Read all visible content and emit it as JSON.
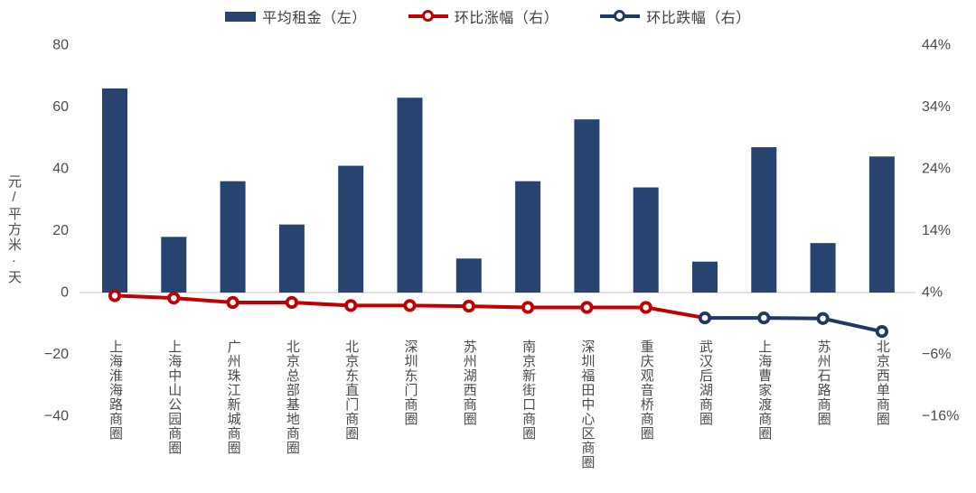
{
  "legend": [
    {
      "label": "平均租金（左）",
      "marker": "bar-swatch",
      "color": "#27436f"
    },
    {
      "label": "环比涨幅（右）",
      "marker": "line-ring",
      "color": "#c00000"
    },
    {
      "label": "环比跌幅（右）",
      "marker": "line-ring",
      "color": "#1f3864"
    }
  ],
  "chart_data": {
    "type": "bar+line",
    "legend_position": "top",
    "grid": "none",
    "zero_line_color": "#d9d9d9",
    "categories": [
      "上海淮海路商圈",
      "上海中山公园商圈",
      "广州珠江新城商圈",
      "北京总部基地商圈",
      "北京东直门商圈",
      "深圳东门商圈",
      "苏州湖西商圈",
      "南京新街口商圈",
      "深圳福田中心区商圈",
      "重庆观音桥商圈",
      "武汉后湖商圈",
      "上海曹家渡商圈",
      "苏州石路商圈",
      "北京西单商圈"
    ],
    "series": [
      {
        "name": "平均租金（左）",
        "type": "bar",
        "axis": "left",
        "color": "#27436f",
        "values": [
          66,
          18,
          36,
          22,
          41,
          63,
          11,
          36,
          56,
          34,
          10,
          47,
          16,
          44
        ]
      },
      {
        "name": "环比涨幅（右）",
        "type": "line",
        "axis": "right",
        "color": "#c00000",
        "marker": "open-circle",
        "bridge_to_next": true,
        "values": [
          3.5,
          3.1,
          2.4,
          2.4,
          1.9,
          1.9,
          1.8,
          1.6,
          1.6,
          1.6,
          null,
          null,
          null,
          null
        ]
      },
      {
        "name": "环比跌幅（右）",
        "type": "line",
        "axis": "right",
        "color": "#1f3864",
        "marker": "open-circle",
        "values": [
          null,
          null,
          null,
          null,
          null,
          null,
          null,
          null,
          null,
          null,
          -0.1,
          -0.1,
          -0.2,
          -2.3
        ]
      }
    ],
    "left_axis": {
      "label": "元/平方米·天",
      "min": -40,
      "max": 80,
      "tick_values": [
        80,
        60,
        40,
        20,
        0,
        -20,
        -40
      ],
      "tick_labels": [
        "80",
        "60",
        "40",
        "20",
        "0",
        "−20",
        "−40"
      ]
    },
    "right_axis": {
      "min": -16,
      "max": 44,
      "unit": "%",
      "tick_values": [
        44,
        34,
        24,
        14,
        4,
        -6,
        -16
      ],
      "tick_labels": [
        "44%",
        "34%",
        "24%",
        "14%",
        "4%",
        "−6%",
        "−16%"
      ]
    }
  }
}
